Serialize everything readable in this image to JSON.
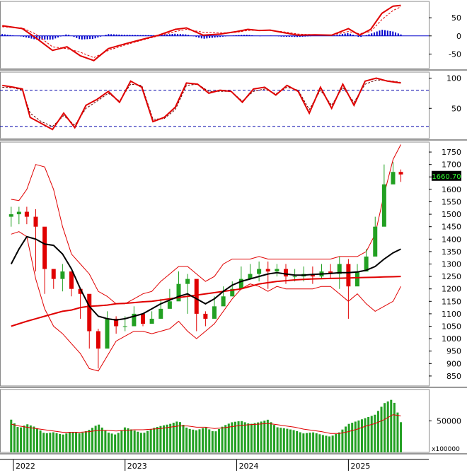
{
  "chart_data": {
    "type": "line",
    "colors": {
      "up_candle": "#22a022",
      "down_candle": "#e00000",
      "ma_long": "#e00000",
      "ma_mid": "#000000",
      "bollinger": "#e00000",
      "histogram": "#0000cc",
      "volume": "#22a022",
      "last_price_bg": "#000000",
      "last_price_fg": "#33ff33"
    },
    "x_ticks": [
      "2022",
      "2023",
      "2024",
      "2025"
    ],
    "last_price_label": "1660.70",
    "panels": [
      {
        "name": "macd",
        "ylim": [
          -90,
          95
        ],
        "ticks": [
          "50",
          "0",
          "-50"
        ],
        "tick_values": [
          50,
          0,
          -50
        ],
        "x": [
          2021.9,
          2022.08,
          2022.2,
          2022.35,
          2022.48,
          2022.6,
          2022.72,
          2022.85,
          2023.0,
          2023.15,
          2023.3,
          2023.45,
          2023.55,
          2023.7,
          2023.85,
          2024.0,
          2024.1,
          2024.2,
          2024.3,
          2024.4,
          2024.55,
          2024.7,
          2024.85,
          2025.0,
          2025.1,
          2025.2,
          2025.3,
          2025.4,
          2025.47
        ],
        "series": [
          {
            "role": "line",
            "values": [
              28,
              20,
              -5,
              -40,
              -30,
              -55,
              -68,
              -35,
              -22,
              -10,
              2,
              18,
              22,
              2,
              5,
              12,
              18,
              15,
              16,
              10,
              2,
              3,
              2,
              20,
              2,
              18,
              62,
              82,
              84
            ]
          },
          {
            "role": "signal",
            "values": [
              25,
              22,
              5,
              -30,
              -35,
              -45,
              -60,
              -40,
              -25,
              -12,
              0,
              12,
              18,
              10,
              8,
              10,
              15,
              16,
              15,
              12,
              5,
              3,
              2,
              12,
              6,
              12,
              45,
              70,
              80
            ]
          },
          {
            "role": "histogram",
            "values": [
              5,
              -2,
              -10,
              -10,
              5,
              -10,
              -8,
              5,
              3,
              2,
              2,
              6,
              4,
              -8,
              -3,
              2,
              3,
              -1,
              1,
              -2,
              -3,
              0,
              0,
              8,
              -4,
              6,
              17,
              12,
              4
            ]
          }
        ]
      },
      {
        "name": "stochastic",
        "ylim": [
          0,
          110
        ],
        "ticks": [
          "100",
          "50"
        ],
        "tick_values": [
          100,
          50
        ],
        "levels": [
          80,
          20
        ],
        "x": [
          2021.9,
          2022.0,
          2022.08,
          2022.15,
          2022.25,
          2022.35,
          2022.45,
          2022.55,
          2022.65,
          2022.75,
          2022.85,
          2022.95,
          2023.05,
          2023.15,
          2023.25,
          2023.35,
          2023.45,
          2023.55,
          2023.65,
          2023.75,
          2023.85,
          2023.95,
          2024.05,
          2024.15,
          2024.25,
          2024.35,
          2024.45,
          2024.55,
          2024.65,
          2024.75,
          2024.85,
          2024.95,
          2025.05,
          2025.15,
          2025.25,
          2025.35,
          2025.47
        ],
        "series": [
          {
            "role": "k",
            "values": [
              88,
              85,
              82,
              35,
              25,
              15,
              42,
              18,
              55,
              65,
              78,
              60,
              95,
              85,
              28,
              35,
              52,
              92,
              90,
              75,
              80,
              78,
              60,
              82,
              85,
              72,
              88,
              78,
              42,
              85,
              50,
              90,
              55,
              95,
              100,
              95,
              92
            ]
          },
          {
            "role": "d",
            "values": [
              85,
              84,
              80,
              42,
              28,
              20,
              38,
              22,
              50,
              62,
              75,
              62,
              90,
              88,
              32,
              33,
              48,
              88,
              90,
              78,
              78,
              78,
              62,
              78,
              82,
              74,
              85,
              80,
              48,
              80,
              55,
              85,
              60,
              90,
              97,
              96,
              93
            ]
          }
        ]
      },
      {
        "name": "price",
        "ylim": [
          810,
          1790
        ],
        "ticks": [
          "1750",
          "1700",
          "1650",
          "1600",
          "1550",
          "1500",
          "1450",
          "1400",
          "1350",
          "1300",
          "1250",
          "1200",
          "1150",
          "1100",
          "1050",
          "1000",
          "950",
          "900",
          "850"
        ],
        "tick_values": [
          1750,
          1700,
          1650,
          1600,
          1550,
          1500,
          1450,
          1400,
          1350,
          1300,
          1250,
          1200,
          1150,
          1100,
          1050,
          1000,
          950,
          900,
          850
        ],
        "x": [
          2021.98,
          2022.05,
          2022.12,
          2022.2,
          2022.28,
          2022.36,
          2022.44,
          2022.52,
          2022.6,
          2022.68,
          2022.76,
          2022.84,
          2022.92,
          2023.0,
          2023.08,
          2023.16,
          2023.24,
          2023.32,
          2023.4,
          2023.48,
          2023.56,
          2023.64,
          2023.72,
          2023.8,
          2023.88,
          2023.96,
          2024.04,
          2024.12,
          2024.2,
          2024.28,
          2024.36,
          2024.44,
          2024.52,
          2024.6,
          2024.68,
          2024.76,
          2024.84,
          2024.92,
          2025.0,
          2025.08,
          2025.16,
          2025.24,
          2025.32,
          2025.4,
          2025.47
        ],
        "series": [
          {
            "role": "close",
            "values": [
              1500,
              1510,
              1490,
              1450,
              1280,
              1240,
              1270,
              1200,
              1180,
              1030,
              960,
              1080,
              1050,
              1050,
              1100,
              1060,
              1080,
              1120,
              1150,
              1220,
              1240,
              1100,
              1080,
              1130,
              1170,
              1200,
              1240,
              1260,
              1280,
              1270,
              1280,
              1250,
              1250,
              1260,
              1250,
              1270,
              1260,
              1300,
              1210,
              1270,
              1330,
              1450,
              1620,
              1670,
              1660
            ]
          },
          {
            "role": "high",
            "values": [
              1530,
              1530,
              1530,
              1520,
              1310,
              1280,
              1300,
              1250,
              1200,
              1080,
              1040,
              1110,
              1090,
              1090,
              1130,
              1100,
              1110,
              1160,
              1200,
              1270,
              1260,
              1130,
              1110,
              1170,
              1210,
              1230,
              1290,
              1300,
              1310,
              1310,
              1300,
              1300,
              1280,
              1290,
              1290,
              1300,
              1300,
              1330,
              1320,
              1300,
              1360,
              1490,
              1700,
              1710,
              1680
            ]
          },
          {
            "role": "low",
            "values": [
              1450,
              1460,
              1460,
              1270,
              1180,
              1200,
              1190,
              1170,
              1080,
              960,
              880,
              1010,
              1020,
              1030,
              1060,
              1050,
              1060,
              1080,
              1130,
              1190,
              1100,
              1030,
              1050,
              1110,
              1140,
              1170,
              1220,
              1240,
              1230,
              1200,
              1250,
              1220,
              1230,
              1230,
              1220,
              1240,
              1240,
              1200,
              1080,
              1220,
              1280,
              1380,
              1560,
              1630,
              1630
            ]
          },
          {
            "role": "ma_mid",
            "values": [
              1300,
              1360,
              1410,
              1400,
              1380,
              1375,
              1340,
              1280,
              1200,
              1130,
              1090,
              1080,
              1075,
              1080,
              1090,
              1100,
              1120,
              1140,
              1155,
              1170,
              1180,
              1160,
              1140,
              1160,
              1190,
              1215,
              1230,
              1240,
              1250,
              1260,
              1265,
              1260,
              1255,
              1255,
              1258,
              1260,
              1262,
              1265,
              1265,
              1268,
              1275,
              1290,
              1320,
              1345,
              1360
            ]
          },
          {
            "role": "ma_long",
            "values": [
              1050,
              1060,
              1070,
              1080,
              1090,
              1100,
              1110,
              1115,
              1125,
              1130,
              1132,
              1135,
              1140,
              1142,
              1145,
              1148,
              1150,
              1155,
              1160,
              1165,
              1170,
              1175,
              1180,
              1185,
              1190,
              1195,
              1200,
              1210,
              1220,
              1225,
              1230,
              1233,
              1236,
              1238,
              1240,
              1241,
              1242,
              1243,
              1244,
              1245,
              1246,
              1247,
              1248,
              1249,
              1250
            ]
          },
          {
            "role": "bb_upper",
            "values": [
              1560,
              1555,
              1600,
              1700,
              1690,
              1600,
              1450,
              1340,
              1300,
              1260,
              1190,
              1170,
              1140,
              1140,
              1160,
              1180,
              1190,
              1230,
              1260,
              1290,
              1290,
              1260,
              1230,
              1250,
              1300,
              1320,
              1320,
              1320,
              1330,
              1320,
              1320,
              1320,
              1320,
              1320,
              1320,
              1320,
              1320,
              1330,
              1330,
              1330,
              1350,
              1420,
              1580,
              1720,
              1780
            ]
          },
          {
            "role": "bb_lower",
            "values": [
              1420,
              1430,
              1410,
              1240,
              1120,
              1050,
              1020,
              980,
              940,
              880,
              870,
              930,
              990,
              1010,
              1030,
              1030,
              1020,
              1030,
              1040,
              1070,
              1030,
              1000,
              1030,
              1060,
              1110,
              1160,
              1200,
              1220,
              1210,
              1190,
              1210,
              1200,
              1200,
              1200,
              1200,
              1210,
              1210,
              1180,
              1150,
              1180,
              1140,
              1110,
              1130,
              1150,
              1210
            ]
          }
        ]
      },
      {
        "name": "volume",
        "ylim": [
          0,
          100000
        ],
        "ticks": [
          "50000"
        ],
        "tick_values": [
          50000
        ],
        "unit_label": "x100000",
        "x": [
          2021.98,
          2022.05,
          2022.12,
          2022.2,
          2022.28,
          2022.36,
          2022.44,
          2022.52,
          2022.6,
          2022.68,
          2022.76,
          2022.84,
          2022.92,
          2023.0,
          2023.08,
          2023.16,
          2023.24,
          2023.32,
          2023.4,
          2023.48,
          2023.56,
          2023.64,
          2023.72,
          2023.8,
          2023.88,
          2023.96,
          2024.04,
          2024.12,
          2024.2,
          2024.28,
          2024.36,
          2024.44,
          2024.52,
          2024.6,
          2024.68,
          2024.76,
          2024.84,
          2024.92,
          2025.0,
          2025.08,
          2025.16,
          2025.24,
          2025.32,
          2025.4,
          2025.47
        ],
        "series": [
          {
            "role": "volume",
            "values": [
              52000,
              38000,
              45000,
              40000,
              30000,
              32000,
              28000,
              33000,
              30000,
              36000,
              45000,
              32000,
              28000,
              40000,
              35000,
              30000,
              38000,
              42000,
              45000,
              50000,
              38000,
              35000,
              40000,
              32000,
              42000,
              48000,
              50000,
              45000,
              48000,
              52000,
              40000,
              38000,
              35000,
              30000,
              32000,
              28000,
              25000,
              32000,
              45000,
              50000,
              55000,
              60000,
              78000,
              85000,
              48000
            ]
          },
          {
            "role": "volume_ma",
            "values": [
              45000,
              42000,
              40000,
              38000,
              36000,
              34000,
              32000,
              32000,
              32000,
              33000,
              35000,
              35000,
              34000,
              35000,
              36000,
              36000,
              37000,
              38000,
              40000,
              42000,
              42000,
              40000,
              40000,
              38000,
              39000,
              41000,
              43000,
              44000,
              45000,
              46000,
              44000,
              42000,
              40000,
              37000,
              35000,
              33000,
              30000,
              30000,
              33000,
              37000,
              42000,
              46000,
              52000,
              60000,
              58000
            ]
          }
        ]
      }
    ]
  }
}
